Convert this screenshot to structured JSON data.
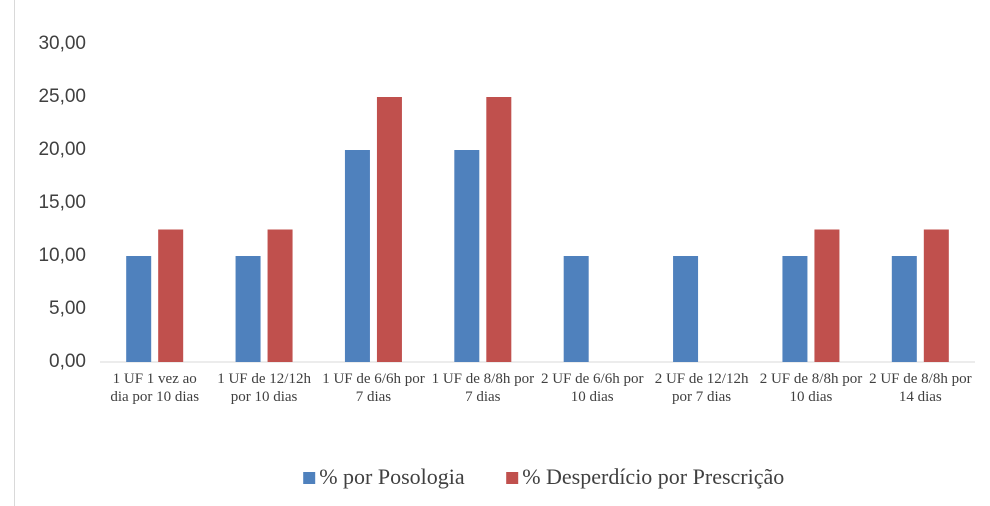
{
  "chart_data": {
    "type": "bar",
    "categories": [
      "1 UF 1 vez ao dia por 10 dias",
      "1 UF de 12/12h por 10 dias",
      "1 UF de 6/6h por 7 dias",
      "1 UF de 8/8h por 7 dias",
      "2 UF de 6/6h por 10 dias",
      "2 UF de 12/12h por 7 dias",
      "2 UF de 8/8h por 10 dias",
      "2 UF de 8/8h por 14 dias"
    ],
    "series": [
      {
        "name": "% por Posologia",
        "color": "#4f81bd",
        "values": [
          10,
          10,
          20,
          20,
          10,
          10,
          10,
          10
        ]
      },
      {
        "name": "% Desperdício por Prescrição",
        "color": "#c0504d",
        "values": [
          12.5,
          12.5,
          25,
          25,
          0,
          0,
          12.5,
          12.5
        ]
      }
    ],
    "ylim": [
      0,
      30
    ],
    "yticks": [
      {
        "value": 0,
        "label": "0,00"
      },
      {
        "value": 5,
        "label": "5,00"
      },
      {
        "value": 10,
        "label": "10,00"
      },
      {
        "value": 15,
        "label": "15,00"
      },
      {
        "value": 20,
        "label": "20,00"
      },
      {
        "value": 25,
        "label": "25,00"
      },
      {
        "value": 30,
        "label": "30,00"
      }
    ],
    "grid": false,
    "legend": "bottom"
  }
}
